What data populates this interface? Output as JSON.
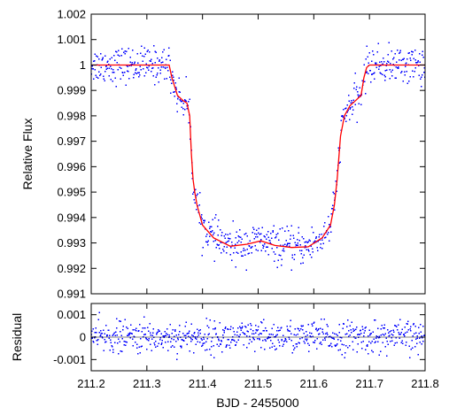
{
  "chart_data": [
    {
      "panel": "top",
      "type": "scatter",
      "ylabel": "Relative Flux",
      "xlim": [
        211.2,
        211.8
      ],
      "ylim": [
        0.991,
        1.002
      ],
      "yticks": [
        0.991,
        0.992,
        0.993,
        0.994,
        0.995,
        0.996,
        0.997,
        0.998,
        0.999,
        1,
        1.001,
        1.002
      ],
      "ytick_labels": [
        "0.991",
        "0.992",
        "0.993",
        "0.994",
        "0.995",
        "0.996",
        "0.997",
        "0.998",
        "0.999",
        "1",
        "1.001",
        "1.002"
      ],
      "point_color": "#0000ff",
      "model_color": "#ff0000",
      "model_x": [
        211.2,
        211.34,
        211.345,
        211.355,
        211.365,
        211.372,
        211.377,
        211.38,
        211.383,
        211.386,
        211.39,
        211.4,
        211.42,
        211.45,
        211.48,
        211.505,
        211.53,
        211.56,
        211.59,
        211.615,
        211.63,
        211.637,
        211.642,
        211.648,
        211.655,
        211.665,
        211.675,
        211.685,
        211.69,
        211.695,
        211.7,
        211.8
      ],
      "model_y": [
        1.0,
        1.0,
        0.9995,
        0.9988,
        0.9986,
        0.9985,
        0.998,
        0.9965,
        0.9955,
        0.995,
        0.9945,
        0.9937,
        0.9932,
        0.99287,
        0.99295,
        0.99308,
        0.9929,
        0.99282,
        0.99285,
        0.9932,
        0.9937,
        0.9945,
        0.9955,
        0.9972,
        0.998,
        0.9984,
        0.9986,
        0.9988,
        0.9995,
        0.9999,
        1.0,
        1.0
      ],
      "noise_sigma": 0.00035,
      "n_points": 700
    },
    {
      "panel": "bottom",
      "type": "scatter",
      "xlabel": "BJD - 2455000",
      "ylabel": "Residual",
      "xlim": [
        211.2,
        211.8
      ],
      "ylim": [
        -0.0015,
        0.0015
      ],
      "xticks": [
        211.2,
        211.3,
        211.4,
        211.5,
        211.6,
        211.7,
        211.8
      ],
      "xtick_labels": [
        "211.2",
        "211.3",
        "211.4",
        "211.5",
        "211.6",
        "211.7",
        "211.8"
      ],
      "yticks": [
        -0.001,
        0,
        0.001
      ],
      "ytick_labels": [
        "-0.001",
        "0",
        "0.001"
      ],
      "point_color": "#0000ff",
      "zero_line_color": "#ff0000",
      "noise_sigma": 0.00035,
      "n_points": 700
    }
  ]
}
